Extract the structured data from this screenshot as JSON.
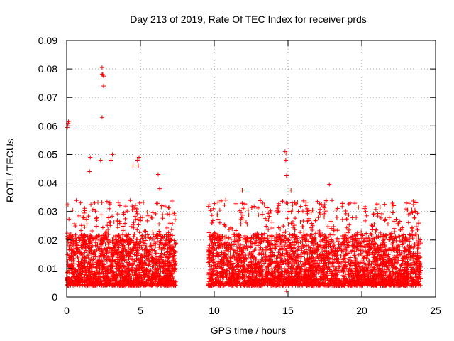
{
  "chart_data": {
    "type": "scatter",
    "title": "Day 213 of 2019, Rate Of TEC Index for receiver prds",
    "xlabel": "GPS time / hours",
    "ylabel": "ROTI / TECUs",
    "xlim": [
      0,
      25
    ],
    "ylim": [
      0,
      0.09
    ],
    "x_ticks": [
      0,
      5,
      10,
      15,
      20,
      25
    ],
    "y_ticks": [
      0,
      0.01,
      0.02,
      0.03,
      0.04,
      0.05,
      0.06,
      0.07,
      0.08,
      0.09
    ],
    "x_tick_labels": [
      "0",
      "5",
      "10",
      "15",
      "20",
      "25"
    ],
    "y_tick_labels": [
      "0",
      "0.01",
      "0.02",
      "0.03",
      "0.04",
      "0.05",
      "0.06",
      "0.07",
      "0.08",
      "0.09"
    ],
    "grid": true,
    "marker": "+",
    "color": "#ff0000",
    "series": [
      {
        "name": "ROTI",
        "segments": [
          [
            0,
            7.4
          ],
          [
            9.6,
            24
          ]
        ],
        "bulk_range": [
          0.004,
          0.022
        ],
        "notable_points": [
          {
            "x": 0.05,
            "y": 0.06
          },
          {
            "x": 0.1,
            "y": 0.061
          },
          {
            "x": 0.05,
            "y": 0.0595
          },
          {
            "x": 0.12,
            "y": 0.0615
          },
          {
            "x": 2.4,
            "y": 0.0805
          },
          {
            "x": 2.45,
            "y": 0.078
          },
          {
            "x": 2.5,
            "y": 0.0775
          },
          {
            "x": 2.4,
            "y": 0.0782
          },
          {
            "x": 2.5,
            "y": 0.074
          },
          {
            "x": 2.4,
            "y": 0.063
          },
          {
            "x": 1.6,
            "y": 0.049
          },
          {
            "x": 1.55,
            "y": 0.044
          },
          {
            "x": 2.3,
            "y": 0.048
          },
          {
            "x": 3.1,
            "y": 0.05
          },
          {
            "x": 3.0,
            "y": 0.048
          },
          {
            "x": 4.5,
            "y": 0.046
          },
          {
            "x": 4.8,
            "y": 0.048
          },
          {
            "x": 4.9,
            "y": 0.049
          },
          {
            "x": 4.85,
            "y": 0.046
          },
          {
            "x": 6.2,
            "y": 0.043
          },
          {
            "x": 6.3,
            "y": 0.038
          },
          {
            "x": 14.8,
            "y": 0.051
          },
          {
            "x": 14.9,
            "y": 0.0505
          },
          {
            "x": 14.85,
            "y": 0.048
          },
          {
            "x": 14.9,
            "y": 0.0425
          },
          {
            "x": 15.2,
            "y": 0.0375
          },
          {
            "x": 11.9,
            "y": 0.0375
          },
          {
            "x": 17.8,
            "y": 0.0395
          },
          {
            "x": 20.2,
            "y": 0.031
          },
          {
            "x": 23.6,
            "y": 0.0305
          },
          {
            "x": 14.9,
            "y": 0.002
          }
        ]
      }
    ]
  }
}
